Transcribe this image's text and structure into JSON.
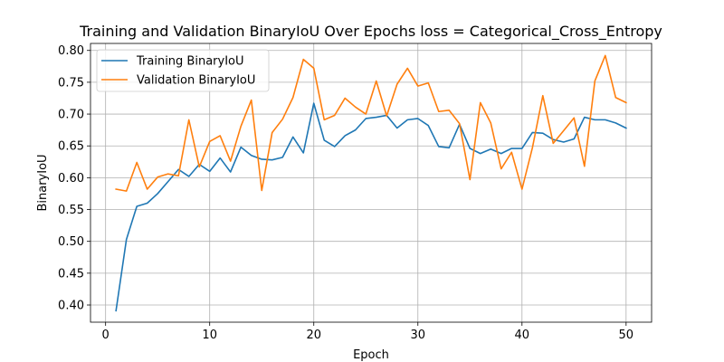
{
  "chart_data": {
    "type": "line",
    "title": "Training and Validation BinaryIoU Over Epochs loss = Categorical_Cross_Entropy",
    "xlabel": "Epoch",
    "ylabel": "BinaryIoU",
    "xlim": [
      -1.45,
      52.45
    ],
    "ylim": [
      0.373,
      0.811
    ],
    "xticks": [
      0,
      10,
      20,
      30,
      40,
      50
    ],
    "yticks": [
      0.4,
      0.45,
      0.5,
      0.55,
      0.6,
      0.65,
      0.7,
      0.75,
      0.8
    ],
    "grid": true,
    "legend_position": "upper-left",
    "x": [
      1,
      2,
      3,
      4,
      5,
      6,
      7,
      8,
      9,
      10,
      11,
      12,
      13,
      14,
      15,
      16,
      17,
      18,
      19,
      20,
      21,
      22,
      23,
      24,
      25,
      26,
      27,
      28,
      29,
      30,
      31,
      32,
      33,
      34,
      35,
      36,
      37,
      38,
      39,
      40,
      41,
      42,
      43,
      44,
      45,
      46,
      47,
      48,
      49,
      50
    ],
    "series": [
      {
        "name": "Training BinaryIoU",
        "color": "#1f77b4",
        "values": [
          0.391,
          0.503,
          0.555,
          0.56,
          0.575,
          0.594,
          0.613,
          0.602,
          0.621,
          0.61,
          0.631,
          0.609,
          0.648,
          0.635,
          0.629,
          0.628,
          0.632,
          0.664,
          0.639,
          0.717,
          0.659,
          0.649,
          0.666,
          0.675,
          0.693,
          0.695,
          0.698,
          0.678,
          0.691,
          0.693,
          0.682,
          0.649,
          0.647,
          0.684,
          0.646,
          0.638,
          0.645,
          0.638,
          0.646,
          0.646,
          0.671,
          0.67,
          0.66,
          0.656,
          0.661,
          0.695,
          0.691,
          0.691,
          0.686,
          0.678
        ]
      },
      {
        "name": "Validation BinaryIoU",
        "color": "#ff7f0e",
        "values": [
          0.582,
          0.579,
          0.624,
          0.582,
          0.601,
          0.606,
          0.603,
          0.691,
          0.617,
          0.657,
          0.666,
          0.626,
          0.681,
          0.722,
          0.58,
          0.671,
          0.692,
          0.726,
          0.786,
          0.772,
          0.691,
          0.698,
          0.725,
          0.711,
          0.7,
          0.752,
          0.697,
          0.747,
          0.772,
          0.744,
          0.749,
          0.704,
          0.706,
          0.685,
          0.597,
          0.718,
          0.686,
          0.614,
          0.64,
          0.582,
          0.647,
          0.729,
          0.654,
          0.674,
          0.694,
          0.618,
          0.752,
          0.792,
          0.726,
          0.718
        ]
      }
    ]
  }
}
